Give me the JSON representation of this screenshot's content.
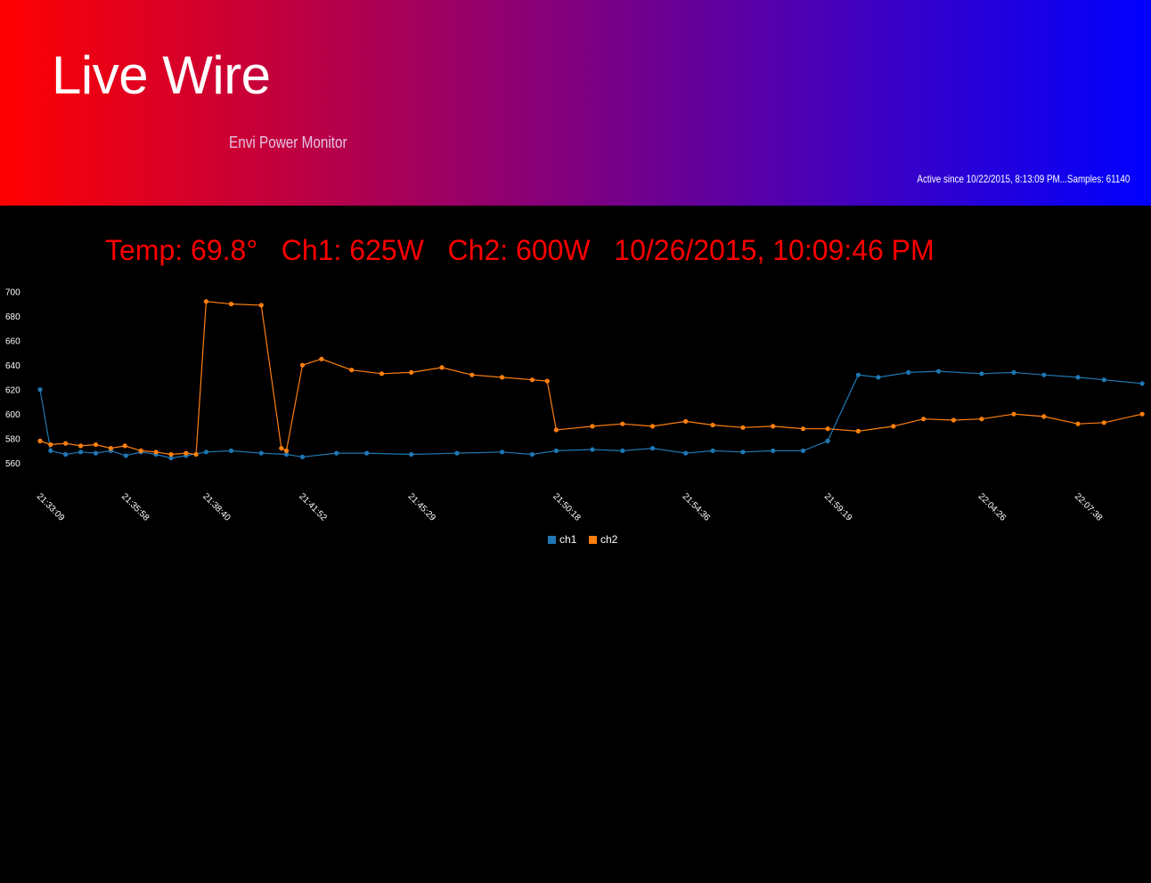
{
  "header": {
    "title": "Live Wire",
    "subtitle": "Envi Power Monitor",
    "status": "Active since 10/22/2015, 8:13:09 PM...Samples: 61140"
  },
  "readout": {
    "text": "Temp: 69.8°   Ch1: 625W   Ch2: 600W   10/26/2015, 10:09:46 PM"
  },
  "colors": {
    "ch1": "#1f77b4",
    "ch2": "#ff7f0e",
    "axis_text": "#ffffff",
    "readout": "#ff0000"
  },
  "chart_data": {
    "type": "line",
    "title": "",
    "xlabel": "",
    "ylabel": "",
    "x_type": "time",
    "x_range": [
      "21:33:09",
      "22:10:00"
    ],
    "ylim": [
      555,
      702
    ],
    "y_ticks": [
      560,
      580,
      600,
      620,
      640,
      660,
      680,
      700
    ],
    "x_ticks": [
      "21:33:09",
      "21:35:58",
      "21:38:40",
      "21:41:52",
      "21:45:29",
      "21:50:18",
      "21:54:36",
      "21:59:19",
      "22:04:26",
      "22:07:38"
    ],
    "grid": false,
    "legend": "bottom-center",
    "markers": true,
    "series": [
      {
        "name": "ch1",
        "x": [
          "21:33:09",
          "21:33:30",
          "21:34:00",
          "21:34:30",
          "21:35:00",
          "21:35:30",
          "21:36:00",
          "21:36:30",
          "21:37:00",
          "21:37:30",
          "21:38:00",
          "21:38:40",
          "21:39:30",
          "21:40:30",
          "21:41:20",
          "21:41:52",
          "21:43:00",
          "21:44:00",
          "21:45:29",
          "21:47:00",
          "21:48:30",
          "21:49:30",
          "21:50:18",
          "21:51:30",
          "21:52:30",
          "21:53:30",
          "21:54:36",
          "21:55:30",
          "21:56:30",
          "21:57:30",
          "21:58:30",
          "21:59:19",
          "22:00:20",
          "22:01:00",
          "22:02:00",
          "22:03:00",
          "22:04:26",
          "22:05:30",
          "22:06:30",
          "22:07:38",
          "22:08:30",
          "22:09:46"
        ],
        "values": [
          620,
          570,
          567,
          569,
          568,
          570,
          566,
          569,
          567,
          564,
          566,
          569,
          570,
          568,
          567,
          565,
          568,
          568,
          567,
          568,
          569,
          567,
          570,
          571,
          570,
          572,
          568,
          570,
          569,
          570,
          570,
          578,
          632,
          630,
          634,
          635,
          633,
          634,
          632,
          630,
          628,
          625
        ]
      },
      {
        "name": "ch2",
        "x": [
          "21:33:09",
          "21:33:30",
          "21:34:00",
          "21:34:30",
          "21:35:00",
          "21:35:30",
          "21:35:58",
          "21:36:30",
          "21:37:00",
          "21:37:30",
          "21:38:00",
          "21:38:20",
          "21:38:40",
          "21:39:30",
          "21:40:30",
          "21:41:10",
          "21:41:20",
          "21:41:52",
          "21:42:30",
          "21:43:30",
          "21:44:30",
          "21:45:29",
          "21:46:30",
          "21:47:30",
          "21:48:30",
          "21:49:30",
          "21:50:00",
          "21:50:18",
          "21:51:30",
          "21:52:30",
          "21:53:30",
          "21:54:36",
          "21:55:30",
          "21:56:30",
          "21:57:30",
          "21:58:30",
          "21:59:19",
          "22:00:20",
          "22:01:30",
          "22:02:30",
          "22:03:30",
          "22:04:26",
          "22:05:30",
          "22:06:30",
          "22:07:38",
          "22:08:30",
          "22:09:46"
        ],
        "values": [
          578,
          575,
          576,
          574,
          575,
          572,
          574,
          570,
          569,
          567,
          568,
          567,
          692,
          690,
          689,
          572,
          570,
          640,
          645,
          636,
          633,
          634,
          638,
          632,
          630,
          628,
          627,
          587,
          590,
          592,
          590,
          594,
          591,
          589,
          590,
          588,
          588,
          586,
          590,
          596,
          595,
          596,
          600,
          598,
          592,
          593,
          600
        ]
      }
    ]
  }
}
